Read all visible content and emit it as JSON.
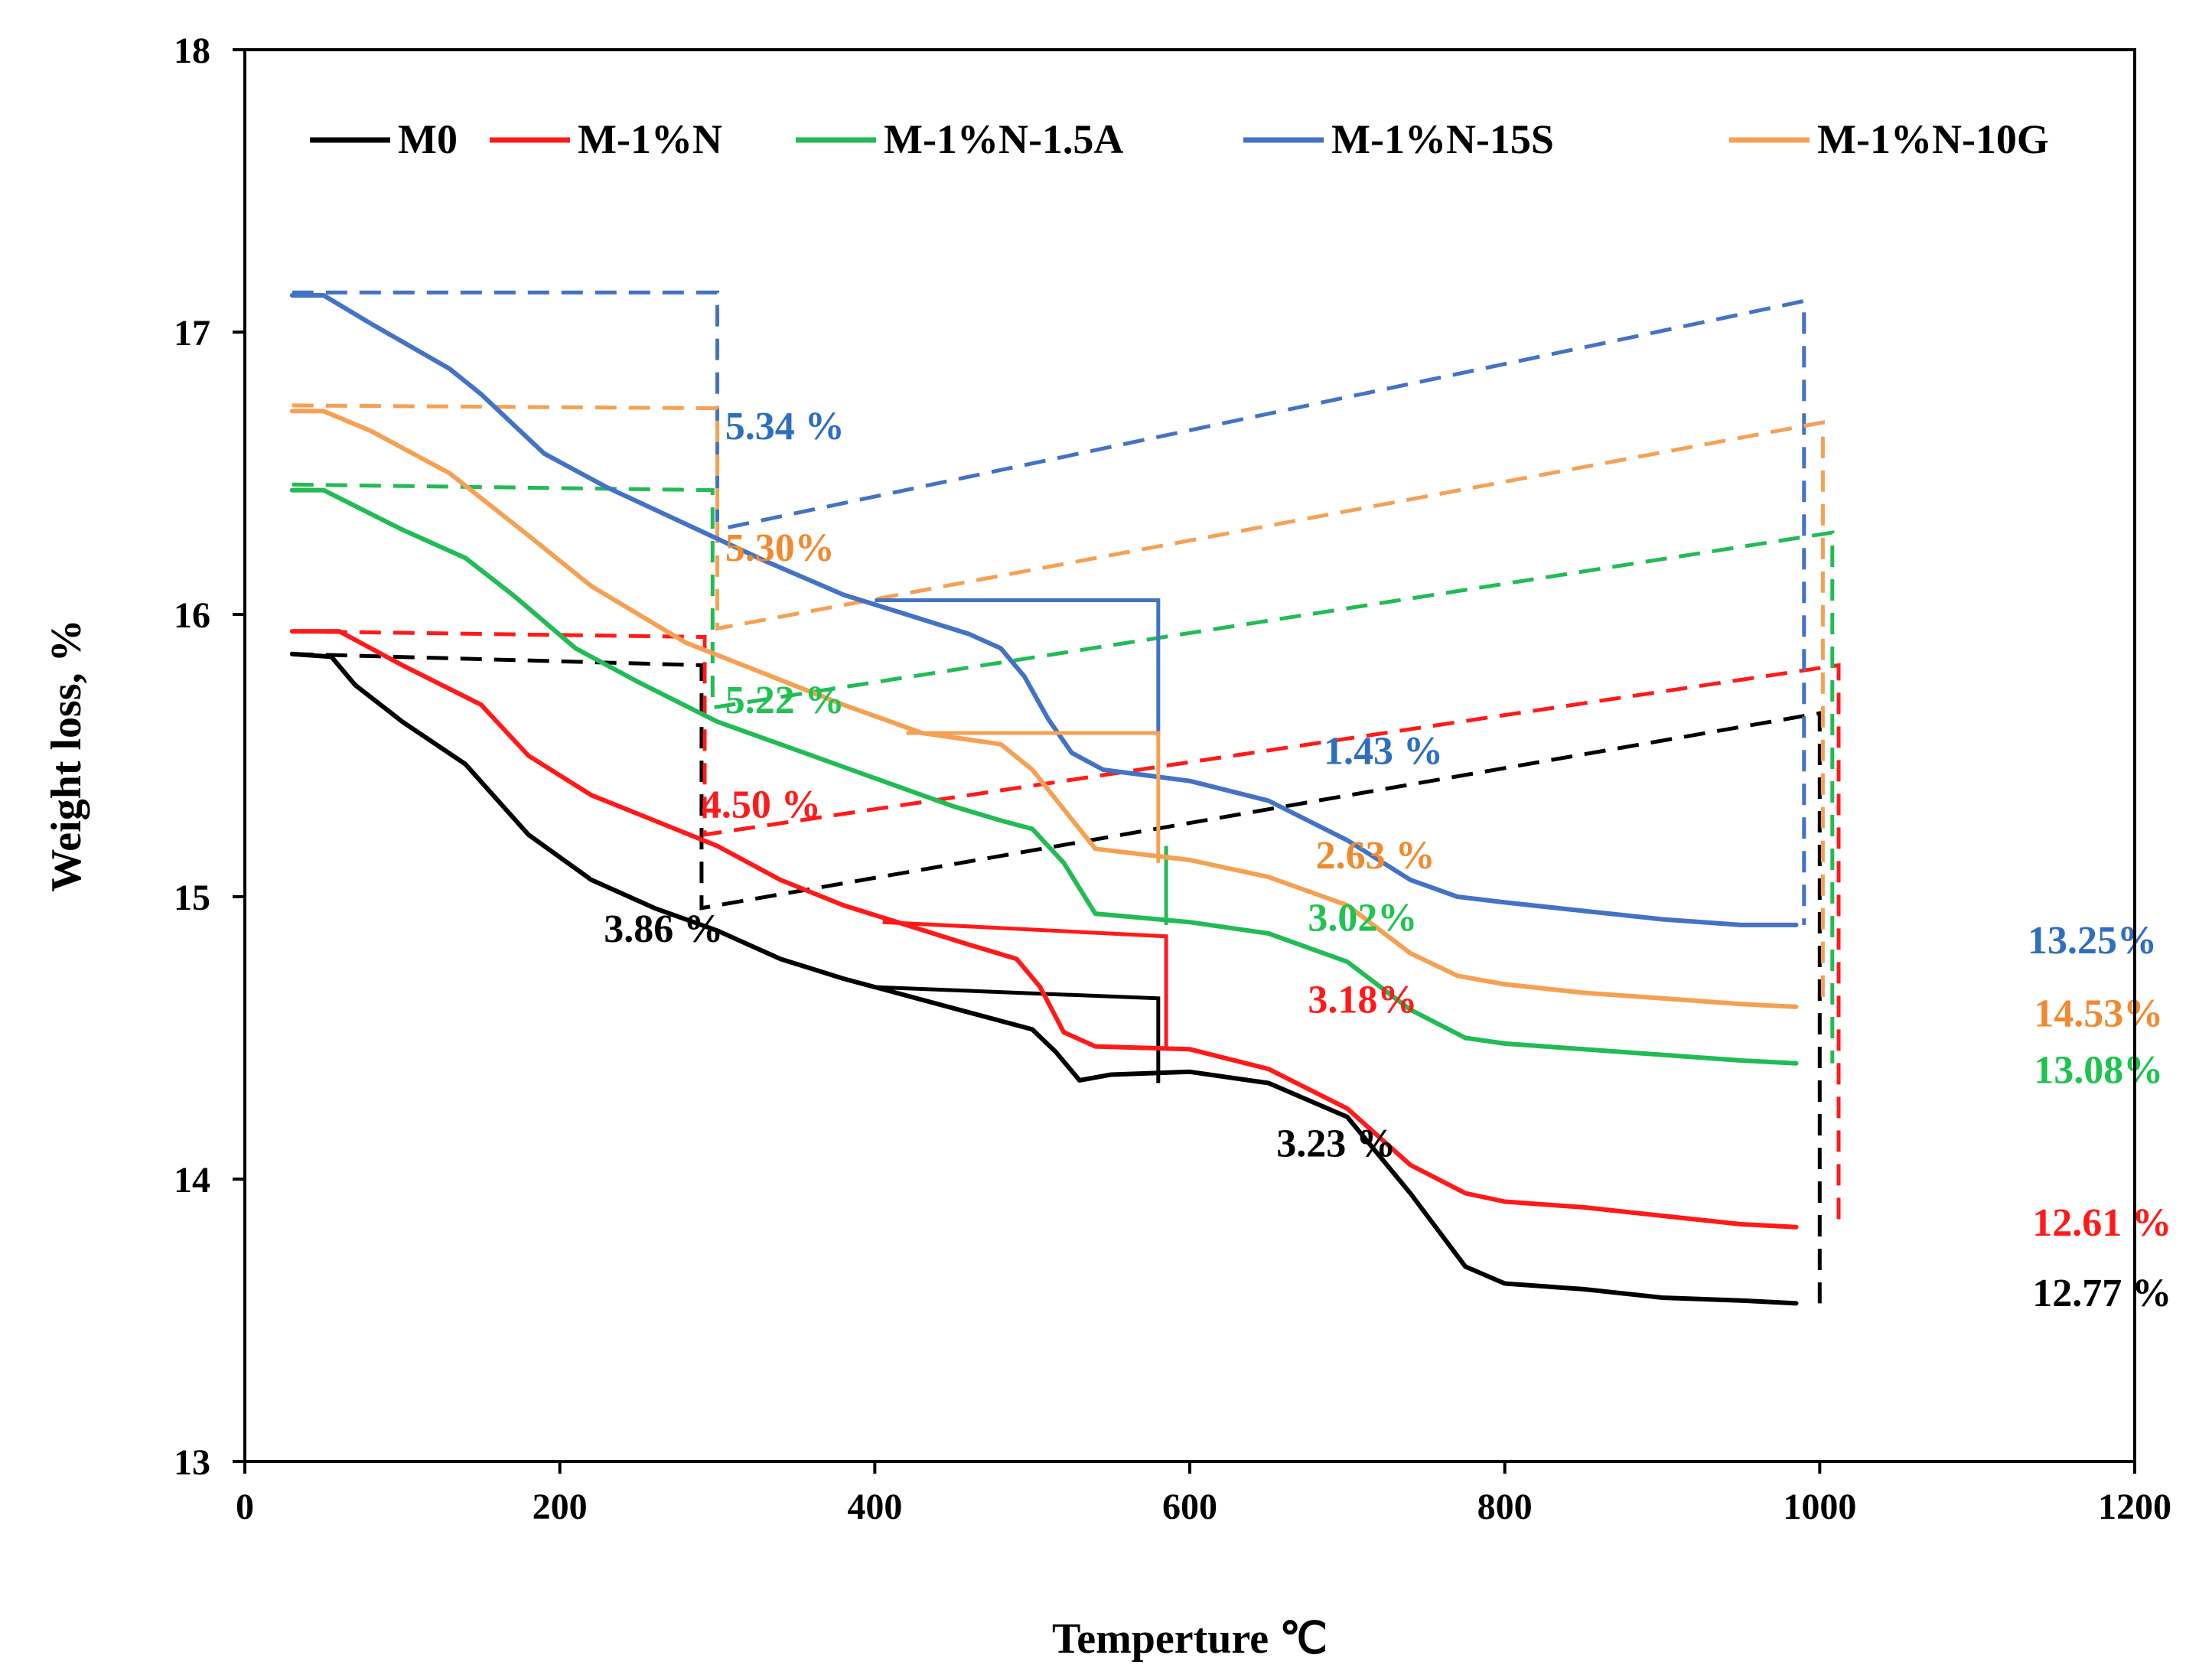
{
  "chart_data": {
    "type": "line",
    "xlabel": "Temperture ℃",
    "ylabel": "Weight loss, %",
    "xlim": [
      0,
      1200
    ],
    "ylim": [
      13,
      18
    ],
    "xticks": [
      "0",
      "200",
      "400",
      "600",
      "800",
      "1000",
      "1200"
    ],
    "yticks": [
      "13",
      "14",
      "15",
      "16",
      "17",
      "18"
    ],
    "legend_position": "top",
    "series": [
      {
        "name": "M0",
        "color": "#000000",
        "x": [
          30,
          55,
          70,
          100,
          140,
          180,
          220,
          260,
          300,
          340,
          380,
          420,
          460,
          500,
          515,
          530,
          550,
          600,
          650,
          700,
          740,
          775,
          800,
          850,
          900,
          950,
          985
        ],
        "y": [
          15.86,
          15.85,
          15.75,
          15.62,
          15.47,
          15.22,
          15.06,
          14.96,
          14.88,
          14.78,
          14.71,
          14.65,
          14.59,
          14.53,
          14.45,
          14.35,
          14.37,
          14.38,
          14.34,
          14.22,
          13.95,
          13.69,
          13.63,
          13.61,
          13.58,
          13.57,
          13.56
        ],
        "dashed_box": {
          "x": [
            30,
            290,
            290,
            1000,
            1000
          ],
          "y": [
            15.86,
            15.82,
            14.96,
            15.65,
            13.56
          ]
        },
        "plateau": {
          "x": [
            400,
            580,
            580
          ],
          "y": [
            14.68,
            14.64,
            14.34
          ]
        }
      },
      {
        "name": "M-1%N",
        "color": "#ff1a1a",
        "x": [
          30,
          60,
          100,
          150,
          180,
          220,
          260,
          300,
          340,
          380,
          420,
          460,
          490,
          505,
          520,
          540,
          600,
          650,
          700,
          740,
          775,
          800,
          850,
          900,
          950,
          985
        ],
        "y": [
          15.94,
          15.94,
          15.82,
          15.68,
          15.5,
          15.36,
          15.27,
          15.18,
          15.06,
          14.97,
          14.9,
          14.83,
          14.78,
          14.68,
          14.52,
          14.47,
          14.46,
          14.39,
          14.25,
          14.05,
          13.95,
          13.92,
          13.9,
          13.87,
          13.84,
          13.83
        ],
        "dashed_box": {
          "x": [
            30,
            292,
            292,
            1012,
            1012
          ],
          "y": [
            15.94,
            15.92,
            15.22,
            15.82,
            13.83
          ]
        },
        "plateau": {
          "x": [
            405,
            585,
            585
          ],
          "y": [
            14.91,
            14.86,
            14.47
          ]
        }
      },
      {
        "name": "M-1%N-1.5A",
        "color": "#22bb55",
        "x": [
          30,
          50,
          100,
          140,
          170,
          210,
          250,
          300,
          350,
          400,
          450,
          480,
          500,
          520,
          540,
          600,
          650,
          700,
          740,
          775,
          800,
          850,
          900,
          950,
          985
        ],
        "y": [
          16.44,
          16.44,
          16.3,
          16.2,
          16.07,
          15.88,
          15.76,
          15.62,
          15.52,
          15.42,
          15.32,
          15.27,
          15.24,
          15.12,
          14.94,
          14.91,
          14.87,
          14.77,
          14.6,
          14.5,
          14.48,
          14.46,
          14.44,
          14.42,
          14.41
        ],
        "dashed_box": {
          "x": [
            30,
            297,
            297,
            1008,
            1008
          ],
          "y": [
            16.46,
            16.44,
            15.67,
            16.29,
            14.41
          ]
        },
        "plateau": {
          "x": [
            585,
            585
          ],
          "y": [
            15.18,
            14.9
          ]
        }
      },
      {
        "name": "M-1%N-15S",
        "color": "#4472c4",
        "x": [
          30,
          50,
          80,
          130,
          150,
          190,
          230,
          280,
          330,
          380,
          420,
          460,
          480,
          495,
          510,
          525,
          545,
          600,
          650,
          700,
          740,
          770,
          800,
          850,
          900,
          950,
          985
        ],
        "y": [
          17.13,
          17.13,
          17.03,
          16.87,
          16.78,
          16.57,
          16.45,
          16.32,
          16.19,
          16.07,
          16.0,
          15.93,
          15.88,
          15.78,
          15.63,
          15.51,
          15.45,
          15.41,
          15.34,
          15.2,
          15.06,
          15.0,
          14.98,
          14.95,
          14.92,
          14.9,
          14.9
        ],
        "dashed_box": {
          "x": [
            30,
            300,
            300,
            990,
            990
          ],
          "y": [
            17.14,
            17.14,
            16.3,
            17.11,
            14.9
          ]
        },
        "plateau": {
          "x": [
            400,
            580,
            580
          ],
          "y": [
            16.05,
            16.05,
            15.57
          ]
        }
      },
      {
        "name": "M-1%N-10G",
        "color": "#f4a154",
        "x": [
          30,
          50,
          80,
          130,
          180,
          220,
          280,
          330,
          380,
          430,
          480,
          500,
          520,
          540,
          600,
          650,
          700,
          740,
          770,
          800,
          850,
          900,
          950,
          985
        ],
        "y": [
          16.72,
          16.72,
          16.65,
          16.5,
          16.28,
          16.1,
          15.9,
          15.79,
          15.68,
          15.58,
          15.54,
          15.45,
          15.31,
          15.17,
          15.13,
          15.07,
          14.97,
          14.8,
          14.72,
          14.69,
          14.66,
          14.64,
          14.62,
          14.61
        ],
        "dashed_box": {
          "x": [
            30,
            300,
            300,
            1002,
            1002
          ],
          "y": [
            16.74,
            16.73,
            15.95,
            16.68,
            14.61
          ]
        },
        "plateau": {
          "x": [
            420,
            580,
            580
          ],
          "y": [
            15.58,
            15.58,
            15.12
          ]
        }
      }
    ],
    "annotations": [
      {
        "text": "5.34 %",
        "color": "#2f6fbf",
        "x": 305,
        "y": 16.62,
        "series": "M-1%N-15S"
      },
      {
        "text": "5.30%",
        "color": "#f08a30",
        "x": 305,
        "y": 16.19,
        "series": "M-1%N-10G"
      },
      {
        "text": "5.22 %",
        "color": "#1ec350",
        "x": 305,
        "y": 15.65,
        "series": "M-1%N-1.5A"
      },
      {
        "text": "4.50 %",
        "color": "#ff1a1a",
        "x": 290,
        "y": 15.28,
        "series": "M-1%N"
      },
      {
        "text": "3.86 %",
        "color": "#000000",
        "x": 228,
        "y": 14.84,
        "series": "M0"
      },
      {
        "text": "1.43 %",
        "color": "#2f6fbf",
        "x": 685,
        "y": 15.47,
        "series": "M-1%N-15S"
      },
      {
        "text": "2.63 %",
        "color": "#f08a30",
        "x": 680,
        "y": 15.1,
        "series": "M-1%N-10G"
      },
      {
        "text": "3.02%",
        "color": "#1ec350",
        "x": 675,
        "y": 14.88,
        "series": "M-1%N-1.5A"
      },
      {
        "text": "3.18%",
        "color": "#ff1a1a",
        "x": 675,
        "y": 14.59,
        "series": "M-1%N"
      },
      {
        "text": "3.23 %",
        "color": "#000000",
        "x": 655,
        "y": 14.08,
        "series": "M0"
      },
      {
        "text": "13.25%",
        "color": "#2f6fbf",
        "x": 1132,
        "y": 14.8,
        "series": "M-1%N-15S"
      },
      {
        "text": "14.53%",
        "color": "#f08a30",
        "x": 1136,
        "y": 14.54,
        "series": "M-1%N-10G"
      },
      {
        "text": "13.08%",
        "color": "#1ec350",
        "x": 1136,
        "y": 14.34,
        "series": "M-1%N-1.5A"
      },
      {
        "text": "12.61 %",
        "color": "#ff1a1a",
        "x": 1135,
        "y": 13.8,
        "series": "M-1%N"
      },
      {
        "text": "12.77 %",
        "color": "#000000",
        "x": 1135,
        "y": 13.55,
        "series": "M0"
      }
    ]
  }
}
